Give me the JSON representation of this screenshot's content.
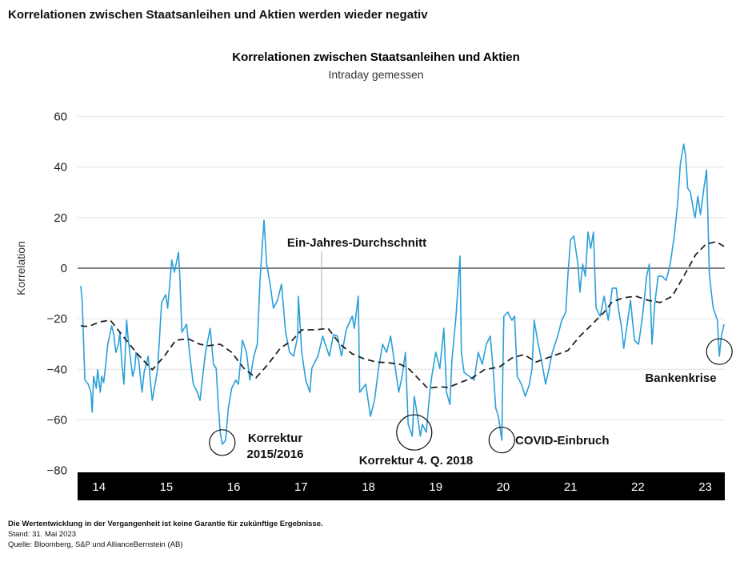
{
  "page_title": "Korrelationen zwischen Staatsanleihen und Aktien werden wieder negativ",
  "footer": {
    "disclaimer": "Die Wertentwicklung in der Vergangenheit ist keine Garantie für zukünftige Ergebnisse.",
    "date": "Stand: 31. Mai 2023",
    "source": "Quelle: Bloomberg, S&P und AllianceBernstein (AB)"
  },
  "colors": {
    "series": "#2a9fd8",
    "average": "#222222",
    "axis_band": "#000000",
    "grid": "#e2e2e2"
  },
  "chart_data": {
    "type": "line",
    "title": "Korrelationen zwischen Staatsanleihen und Aktien",
    "subtitle": "Intraday gemessen",
    "ylabel": "Korrelation",
    "xlabel": "",
    "ylim": [
      -80,
      60
    ],
    "yticks": [
      60,
      40,
      20,
      0,
      -20,
      -40,
      -60,
      -80
    ],
    "ytick_labels": [
      "60",
      "40",
      "20",
      "0",
      "−20",
      "−40",
      "−60",
      "−80"
    ],
    "xlim": [
      2014.0,
      2023.55
    ],
    "xticks": [
      2014,
      2015,
      2016,
      2017,
      2018,
      2019,
      2020,
      2021,
      2022,
      2023
    ],
    "xtick_labels": [
      "14",
      "15",
      "16",
      "17",
      "18",
      "19",
      "20",
      "21",
      "22",
      "23"
    ],
    "grid": true,
    "series": [
      {
        "style": "solid",
        "color": "#2a9fd8",
        "points": [
          [
            2014.0,
            -7.0
          ],
          [
            2014.02,
            -12.7
          ],
          [
            2014.06,
            -44.3
          ],
          [
            2014.11,
            -45.9
          ],
          [
            2014.15,
            -49.1
          ],
          [
            2014.17,
            -57.0
          ],
          [
            2014.19,
            -42.8
          ],
          [
            2014.23,
            -47.5
          ],
          [
            2014.25,
            -40.2
          ],
          [
            2014.29,
            -49.1
          ],
          [
            2014.31,
            -42.8
          ],
          [
            2014.34,
            -45.3
          ],
          [
            2014.37,
            -38.0
          ],
          [
            2014.4,
            -30.1
          ],
          [
            2014.46,
            -22.8
          ],
          [
            2014.49,
            -26.3
          ],
          [
            2014.52,
            -33.3
          ],
          [
            2014.56,
            -30.1
          ],
          [
            2014.58,
            -25.3
          ],
          [
            2014.61,
            -38.0
          ],
          [
            2014.64,
            -45.9
          ],
          [
            2014.68,
            -20.6
          ],
          [
            2014.7,
            -26.9
          ],
          [
            2014.74,
            -36.4
          ],
          [
            2014.77,
            -42.8
          ],
          [
            2014.8,
            -39.6
          ],
          [
            2014.82,
            -33.3
          ],
          [
            2014.86,
            -36.4
          ],
          [
            2014.89,
            -44.3
          ],
          [
            2014.91,
            -49.1
          ],
          [
            2014.94,
            -41.2
          ],
          [
            2014.97,
            -38.0
          ],
          [
            2015.0,
            -34.8
          ],
          [
            2015.06,
            -52.3
          ],
          [
            2015.14,
            -40.2
          ],
          [
            2015.2,
            -13.6
          ],
          [
            2015.26,
            -10.5
          ],
          [
            2015.29,
            -15.8
          ],
          [
            2015.35,
            3.2
          ],
          [
            2015.39,
            -1.6
          ],
          [
            2015.45,
            6.3
          ],
          [
            2015.47,
            -3.2
          ],
          [
            2015.5,
            -25.3
          ],
          [
            2015.57,
            -22.2
          ],
          [
            2015.62,
            -34.8
          ],
          [
            2015.67,
            -45.9
          ],
          [
            2015.73,
            -49.1
          ],
          [
            2015.77,
            -52.3
          ],
          [
            2015.81,
            -42.8
          ],
          [
            2015.85,
            -33.3
          ],
          [
            2015.92,
            -23.8
          ],
          [
            2015.97,
            -38.0
          ],
          [
            2016.01,
            -39.6
          ],
          [
            2016.04,
            -53.9
          ],
          [
            2016.07,
            -64.9
          ],
          [
            2016.1,
            -69.7
          ],
          [
            2016.15,
            -68.1
          ],
          [
            2016.19,
            -55.4
          ],
          [
            2016.24,
            -47.5
          ],
          [
            2016.3,
            -44.3
          ],
          [
            2016.34,
            -45.9
          ],
          [
            2016.4,
            -28.5
          ],
          [
            2016.46,
            -33.3
          ],
          [
            2016.51,
            -44.3
          ],
          [
            2016.57,
            -34.8
          ],
          [
            2016.62,
            -30.1
          ],
          [
            2016.66,
            -4.8
          ],
          [
            2016.72,
            19.0
          ],
          [
            2016.76,
            1.6
          ],
          [
            2016.81,
            -6.3
          ],
          [
            2016.86,
            -15.8
          ],
          [
            2016.92,
            -12.7
          ],
          [
            2016.98,
            -6.3
          ],
          [
            2017.04,
            -25.3
          ],
          [
            2017.1,
            -33.3
          ],
          [
            2017.16,
            -34.8
          ],
          [
            2017.22,
            -26.9
          ],
          [
            2017.23,
            -11.1
          ],
          [
            2017.28,
            -33.3
          ],
          [
            2017.34,
            -44.3
          ],
          [
            2017.4,
            -49.1
          ],
          [
            2017.43,
            -39.6
          ],
          [
            2017.52,
            -34.8
          ],
          [
            2017.59,
            -26.9
          ],
          [
            2017.63,
            -30.1
          ],
          [
            2017.69,
            -34.8
          ],
          [
            2017.75,
            -26.3
          ],
          [
            2017.81,
            -26.9
          ],
          [
            2017.87,
            -34.8
          ],
          [
            2017.94,
            -24.4
          ],
          [
            2018.03,
            -19.0
          ],
          [
            2018.06,
            -23.8
          ],
          [
            2018.12,
            -11.1
          ],
          [
            2018.14,
            -49.1
          ],
          [
            2018.23,
            -45.9
          ],
          [
            2018.3,
            -58.6
          ],
          [
            2018.36,
            -52.3
          ],
          [
            2018.42,
            -39.6
          ],
          [
            2018.48,
            -30.1
          ],
          [
            2018.54,
            -33.3
          ],
          [
            2018.6,
            -26.9
          ],
          [
            2018.66,
            -38.0
          ],
          [
            2018.72,
            -49.1
          ],
          [
            2018.77,
            -42.8
          ],
          [
            2018.82,
            -33.3
          ],
          [
            2018.86,
            -61.8
          ],
          [
            2018.92,
            -66.5
          ],
          [
            2018.95,
            -50.7
          ],
          [
            2019.0,
            -58.6
          ],
          [
            2019.04,
            -66.5
          ],
          [
            2019.07,
            -61.8
          ],
          [
            2019.13,
            -64.9
          ],
          [
            2019.18,
            -49.1
          ],
          [
            2019.21,
            -42.8
          ],
          [
            2019.27,
            -33.3
          ],
          [
            2019.33,
            -39.6
          ],
          [
            2019.39,
            -23.8
          ],
          [
            2019.43,
            -49.1
          ],
          [
            2019.48,
            -53.9
          ],
          [
            2019.51,
            -36.4
          ],
          [
            2019.57,
            -19.0
          ],
          [
            2019.63,
            4.8
          ],
          [
            2019.65,
            -33.3
          ],
          [
            2019.69,
            -41.2
          ],
          [
            2019.77,
            -42.8
          ],
          [
            2019.84,
            -44.3
          ],
          [
            2019.9,
            -33.3
          ],
          [
            2019.96,
            -38.0
          ],
          [
            2020.02,
            -30.1
          ],
          [
            2020.08,
            -26.9
          ],
          [
            2020.13,
            -42.8
          ],
          [
            2020.16,
            -55.4
          ],
          [
            2020.2,
            -58.6
          ],
          [
            2020.25,
            -68.1
          ],
          [
            2020.26,
            -49.1
          ],
          [
            2020.28,
            -19.0
          ],
          [
            2020.34,
            -17.4
          ],
          [
            2020.4,
            -20.6
          ],
          [
            2020.44,
            -19.0
          ],
          [
            2020.48,
            -42.8
          ],
          [
            2020.54,
            -45.9
          ],
          [
            2020.6,
            -50.7
          ],
          [
            2020.66,
            -45.9
          ],
          [
            2020.7,
            -39.6
          ],
          [
            2020.73,
            -20.6
          ],
          [
            2020.78,
            -28.5
          ],
          [
            2020.84,
            -36.4
          ],
          [
            2020.9,
            -45.9
          ],
          [
            2020.94,
            -41.2
          ],
          [
            2021.0,
            -33.3
          ],
          [
            2021.08,
            -26.9
          ],
          [
            2021.14,
            -20.6
          ],
          [
            2021.2,
            -17.4
          ],
          [
            2021.23,
            -3.2
          ],
          [
            2021.27,
            11.1
          ],
          [
            2021.32,
            12.7
          ],
          [
            2021.38,
            1.6
          ],
          [
            2021.41,
            -9.5
          ],
          [
            2021.45,
            1.6
          ],
          [
            2021.49,
            -3.2
          ],
          [
            2021.53,
            14.3
          ],
          [
            2021.57,
            7.9
          ],
          [
            2021.61,
            14.3
          ],
          [
            2021.65,
            -15.8
          ],
          [
            2021.71,
            -19.0
          ],
          [
            2021.77,
            -11.1
          ],
          [
            2021.83,
            -20.6
          ],
          [
            2021.89,
            -7.9
          ],
          [
            2021.95,
            -7.9
          ],
          [
            2021.98,
            -15.8
          ],
          [
            2022.03,
            -23.8
          ],
          [
            2022.06,
            -31.7
          ],
          [
            2022.12,
            -20.6
          ],
          [
            2022.16,
            -12.7
          ],
          [
            2022.22,
            -28.5
          ],
          [
            2022.28,
            -30.1
          ],
          [
            2022.34,
            -19.0
          ],
          [
            2022.4,
            -3.2
          ],
          [
            2022.44,
            1.6
          ],
          [
            2022.48,
            -30.1
          ],
          [
            2022.52,
            -14.3
          ],
          [
            2022.57,
            -3.2
          ],
          [
            2022.63,
            -3.2
          ],
          [
            2022.69,
            -4.8
          ],
          [
            2022.75,
            1.6
          ],
          [
            2022.81,
            12.7
          ],
          [
            2022.86,
            25.3
          ],
          [
            2022.9,
            41.2
          ],
          [
            2022.95,
            49.1
          ],
          [
            2022.98,
            44.3
          ],
          [
            2023.01,
            31.7
          ],
          [
            2023.05,
            30.1
          ],
          [
            2023.1,
            22.2
          ],
          [
            2023.12,
            20.0
          ],
          [
            2023.16,
            28.5
          ],
          [
            2023.2,
            21.2
          ],
          [
            2023.25,
            31.7
          ],
          [
            2023.29,
            38.9
          ],
          [
            2023.31,
            20.6
          ],
          [
            2023.33,
            -1.6
          ],
          [
            2023.36,
            -9.5
          ],
          [
            2023.39,
            -15.8
          ],
          [
            2023.45,
            -20.6
          ],
          [
            2023.48,
            -34.8
          ],
          [
            2023.51,
            -26.9
          ],
          [
            2023.55,
            -22.2
          ]
        ]
      },
      {
        "name": "Ein-Jahres-Durchschnitt",
        "style": "dashed",
        "color": "#222222",
        "points": [
          [
            2014.0,
            -22.8
          ],
          [
            2014.11,
            -23.1
          ],
          [
            2014.29,
            -21.2
          ],
          [
            2014.44,
            -20.6
          ],
          [
            2014.58,
            -25.3
          ],
          [
            2014.82,
            -33.3
          ],
          [
            2015.06,
            -40.2
          ],
          [
            2015.24,
            -34.8
          ],
          [
            2015.41,
            -28.5
          ],
          [
            2015.59,
            -27.9
          ],
          [
            2015.77,
            -30.1
          ],
          [
            2015.89,
            -30.7
          ],
          [
            2016.07,
            -30.1
          ],
          [
            2016.24,
            -33.3
          ],
          [
            2016.42,
            -39.6
          ],
          [
            2016.6,
            -43.4
          ],
          [
            2016.78,
            -38.0
          ],
          [
            2016.96,
            -31.7
          ],
          [
            2017.14,
            -28.5
          ],
          [
            2017.28,
            -24.4
          ],
          [
            2017.49,
            -24.4
          ],
          [
            2017.67,
            -23.8
          ],
          [
            2017.85,
            -30.1
          ],
          [
            2018.03,
            -33.9
          ],
          [
            2018.2,
            -35.8
          ],
          [
            2018.38,
            -37.1
          ],
          [
            2018.56,
            -37.4
          ],
          [
            2018.74,
            -38.0
          ],
          [
            2018.86,
            -39.6
          ],
          [
            2018.98,
            -42.8
          ],
          [
            2019.15,
            -47.5
          ],
          [
            2019.33,
            -46.9
          ],
          [
            2019.45,
            -47.2
          ],
          [
            2019.63,
            -45.3
          ],
          [
            2019.81,
            -43.4
          ],
          [
            2019.99,
            -40.2
          ],
          [
            2020.22,
            -39.0
          ],
          [
            2020.4,
            -35.5
          ],
          [
            2020.58,
            -34.2
          ],
          [
            2020.76,
            -37.1
          ],
          [
            2021.0,
            -34.8
          ],
          [
            2021.23,
            -32.6
          ],
          [
            2021.41,
            -26.9
          ],
          [
            2021.59,
            -22.2
          ],
          [
            2021.77,
            -17.4
          ],
          [
            2021.89,
            -13.3
          ],
          [
            2022.06,
            -11.7
          ],
          [
            2022.24,
            -11.1
          ],
          [
            2022.42,
            -12.7
          ],
          [
            2022.6,
            -13.6
          ],
          [
            2022.78,
            -11.1
          ],
          [
            2022.95,
            -3.2
          ],
          [
            2023.13,
            5.4
          ],
          [
            2023.28,
            9.5
          ],
          [
            2023.43,
            10.5
          ],
          [
            2023.55,
            8.6
          ]
        ]
      }
    ],
    "annotations": [
      {
        "label": "Korrektur",
        "label2": "2015/2016",
        "x": 2016.1,
        "y": -69
      },
      {
        "label": "Korrektur 4. Q. 2018",
        "x": 2018.95,
        "y": -65
      },
      {
        "label": "COVID-Einbruch",
        "x": 2020.25,
        "y": -68
      },
      {
        "label": "Bankenkrise",
        "x": 2023.48,
        "y": -33
      },
      {
        "label": "Ein-Jahres-Durchschnitt",
        "x": 2017.4,
        "y": -24
      }
    ]
  }
}
